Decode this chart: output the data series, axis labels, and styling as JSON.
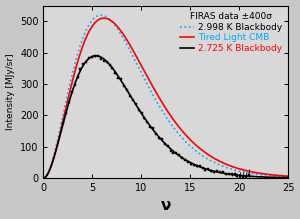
{
  "title": "FIRAS data ±400σ",
  "xlabel": "ν",
  "ylabel": "Intensity [MJy/sr]",
  "xlim": [
    0,
    25
  ],
  "ylim": [
    0,
    550
  ],
  "yticks": [
    0,
    100,
    200,
    300,
    400,
    500
  ],
  "xticks": [
    0,
    5,
    10,
    15,
    20,
    25
  ],
  "T_firas": 2.725,
  "T_bb2": 2.998,
  "legend_entries": [
    "2.725 K Blackbody",
    "2.998 K Blackbody",
    "Tired Light CMB"
  ],
  "line_colors": [
    "black",
    "#00aaff",
    "red"
  ],
  "data_color": "black",
  "background_color": "#c8c8c8",
  "plot_bg_color": "#d8d8d8",
  "nu_max": 25,
  "nu_min": 0,
  "nu_steps": 500,
  "errorbar_nu": [
    20.0,
    21.0
  ],
  "errorbar_vals": [
    5.0,
    2.0
  ],
  "errorbar_errs": [
    15.0,
    10.0
  ]
}
